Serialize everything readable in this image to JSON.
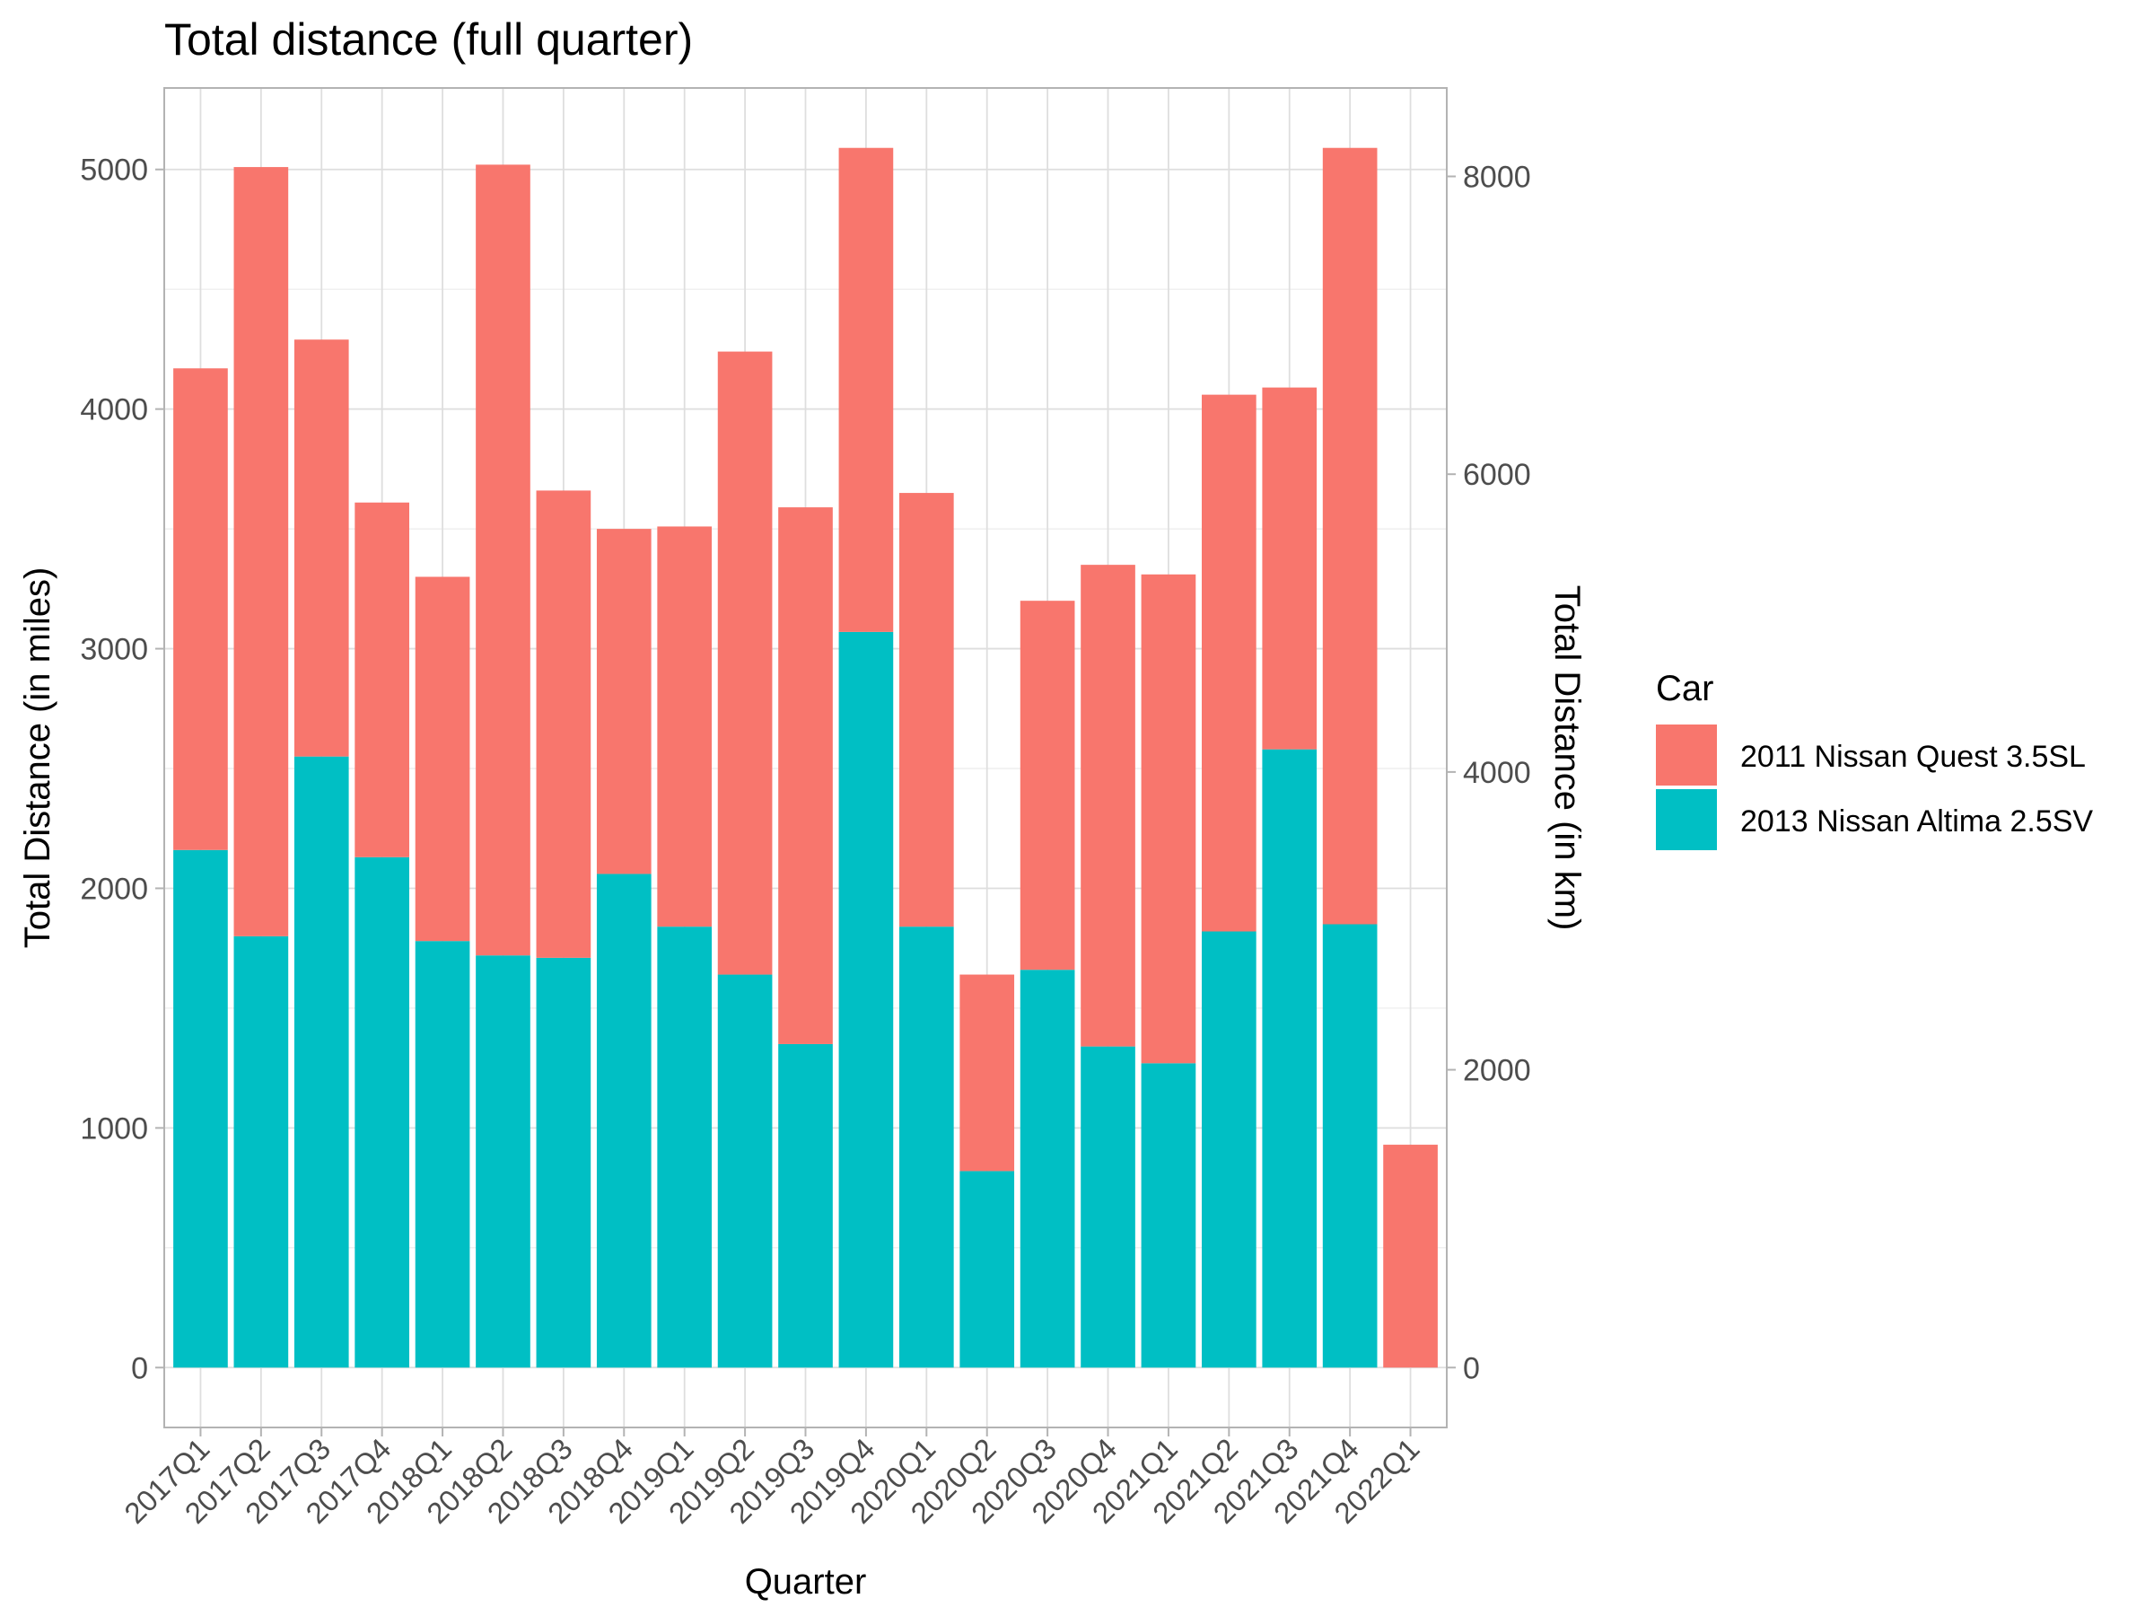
{
  "chart_data": {
    "type": "bar",
    "stacked": true,
    "title": "Total distance (full quarter)",
    "xlabel": "Quarter",
    "ylabel": "Total Distance (in miles)",
    "y2label": "Total Distance (in km)",
    "categories": [
      "2017Q1",
      "2017Q2",
      "2017Q3",
      "2017Q4",
      "2018Q1",
      "2018Q2",
      "2018Q3",
      "2018Q4",
      "2019Q1",
      "2019Q2",
      "2019Q3",
      "2019Q4",
      "2020Q1",
      "2020Q2",
      "2020Q3",
      "2020Q4",
      "2021Q1",
      "2021Q2",
      "2021Q3",
      "2021Q4",
      "2022Q1"
    ],
    "ylim": [
      -250,
      5340
    ],
    "yticks": [
      0,
      1000,
      2000,
      3000,
      4000,
      5000
    ],
    "y2ticks": [
      0,
      2000,
      4000,
      6000,
      8000
    ],
    "km_per_mile": 1.609344,
    "grid": true,
    "legend": {
      "title": "Car",
      "placement": "right"
    },
    "series": [
      {
        "name": "2013 Nissan Altima 2.5SV",
        "color": "#00BFC4",
        "values": [
          2160,
          1800,
          2550,
          2130,
          1780,
          1720,
          1710,
          2060,
          1840,
          1640,
          1350,
          3070,
          1840,
          820,
          1660,
          1340,
          1270,
          1820,
          2580,
          1850,
          0
        ]
      },
      {
        "name": "2011 Nissan Quest 3.5SL",
        "color": "#F8766D",
        "values": [
          2010,
          3210,
          1740,
          1480,
          1520,
          3300,
          1950,
          1440,
          1670,
          2600,
          2240,
          2020,
          1810,
          820,
          1540,
          2010,
          2040,
          2240,
          1510,
          3240,
          930
        ]
      }
    ]
  }
}
